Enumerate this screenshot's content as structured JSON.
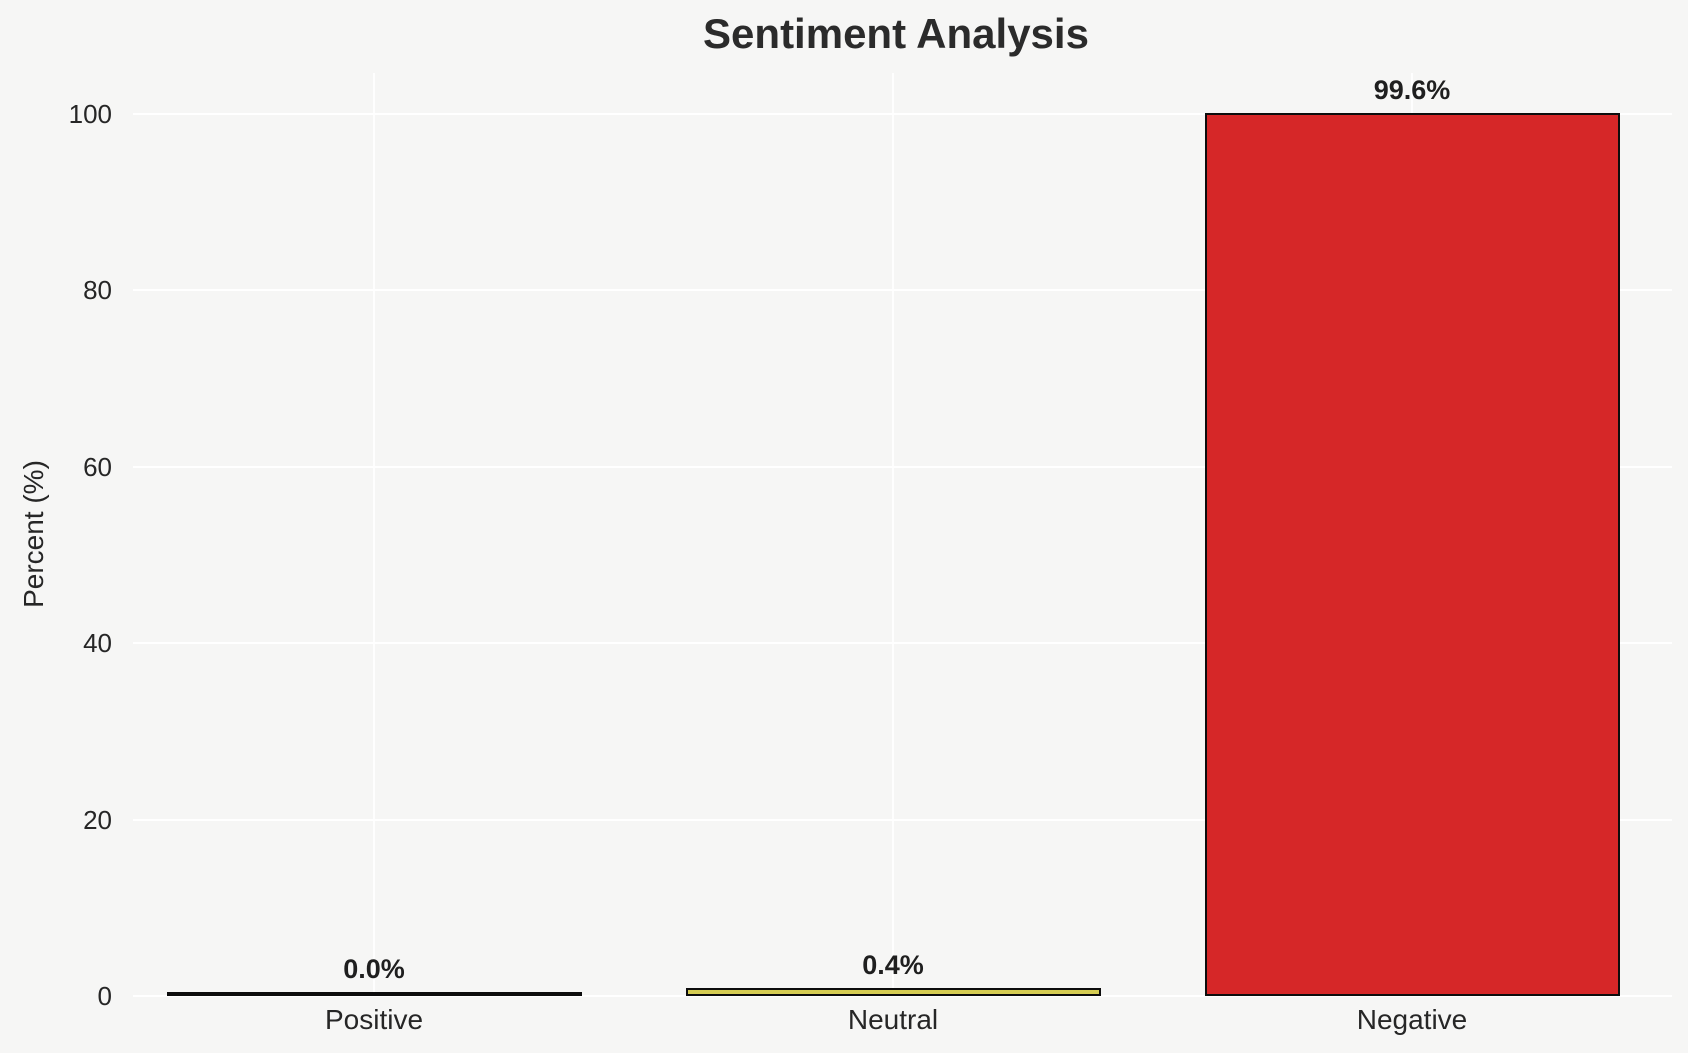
{
  "chart_data": {
    "type": "bar",
    "title": "Sentiment Analysis",
    "xlabel": "",
    "ylabel": "Percent (%)",
    "categories": [
      "Positive",
      "Neutral",
      "Negative"
    ],
    "values": [
      0.0,
      0.4,
      99.6
    ],
    "value_labels": [
      "0.0%",
      "0.4%",
      "99.6%"
    ],
    "yticks": [
      0,
      20,
      40,
      60,
      80,
      100
    ],
    "ylim": [
      0,
      104.6
    ],
    "grid": "both-axes, white gridlines",
    "legend": false,
    "bar_colors": [
      null,
      "#d5cc52",
      "#d62728"
    ],
    "bar_edge_color": "#0d0d0d"
  },
  "colors": {
    "background": "#f6f6f5",
    "gridline": "#ffffff",
    "text": "#262626",
    "title": "#2b2b2b"
  }
}
